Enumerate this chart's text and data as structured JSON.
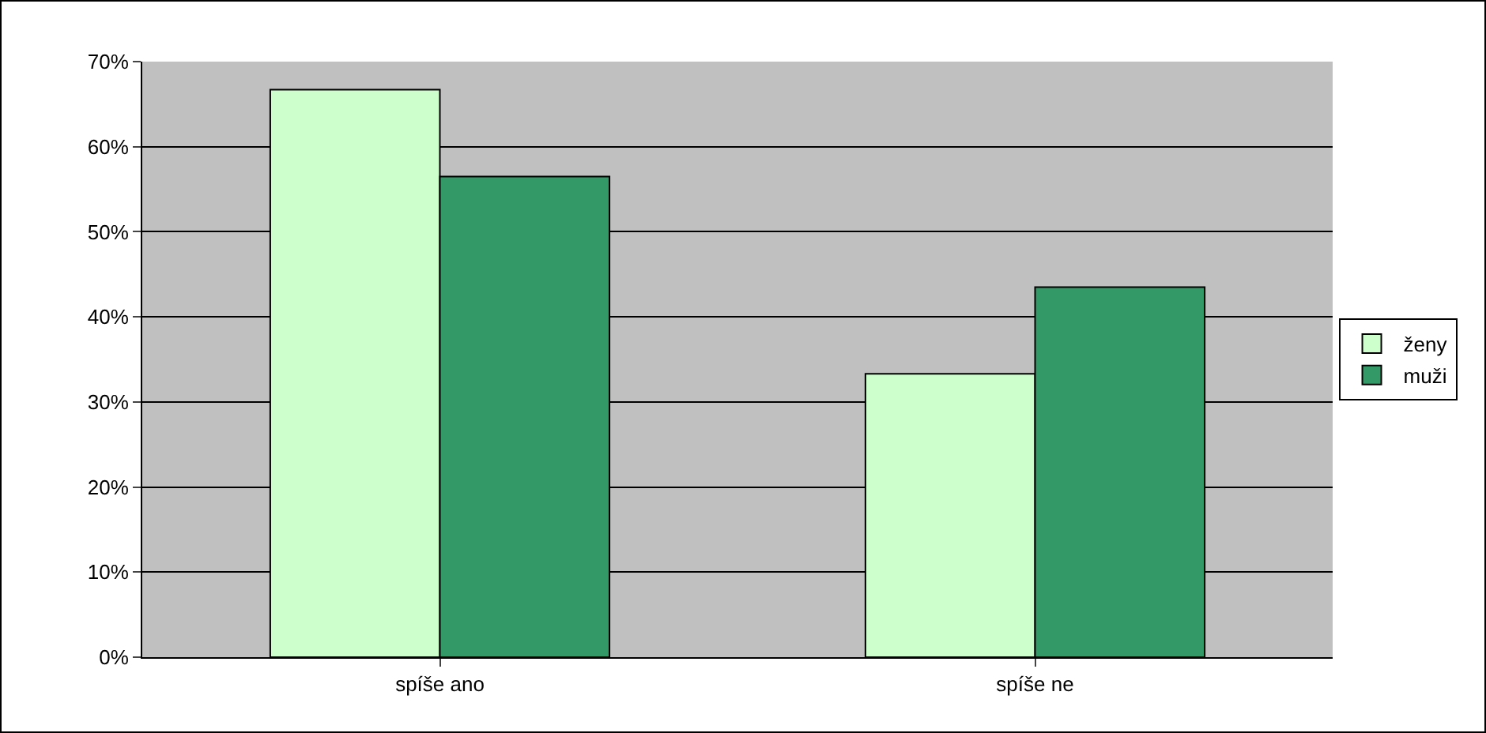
{
  "chart_data": {
    "type": "bar",
    "categories": [
      "spíše ano",
      "spíše ne"
    ],
    "series": [
      {
        "name": "ženy",
        "color": "#ccffcc",
        "values": [
          66.7,
          33.3
        ]
      },
      {
        "name": "muži",
        "color": "#339966",
        "values": [
          56.5,
          43.5
        ]
      }
    ],
    "ylim": [
      0,
      70
    ],
    "yticks": [
      {
        "value": 0,
        "label": "0%"
      },
      {
        "value": 10,
        "label": "10%"
      },
      {
        "value": 20,
        "label": "20%"
      },
      {
        "value": 30,
        "label": "30%"
      },
      {
        "value": 40,
        "label": "40%"
      },
      {
        "value": 50,
        "label": "50%"
      },
      {
        "value": 60,
        "label": "60%"
      },
      {
        "value": 70,
        "label": "70%"
      }
    ],
    "grid": "y",
    "legend": "right"
  }
}
